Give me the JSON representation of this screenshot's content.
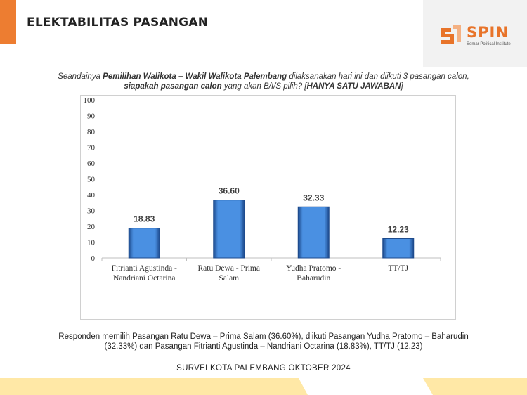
{
  "slide": {
    "title": "ELEKTABILITAS PASANGAN",
    "question": {
      "p1": "Seandainya ",
      "b1": "Pemilihan Walikota – Wakil Walikota Palembang",
      "p2": " dilaksanakan hari ini dan diikuti 3 pasangan calon, ",
      "b2": "siapakah pasangan calon",
      "p3": " yang akan B/I/S pilih? [",
      "b3": "HANYA SATU JAWABAN",
      "p4": "]"
    },
    "summary": "Responden memilih Pasangan Ratu Dewa – Prima Salam (36.60%), diikuti Pasangan Yudha Pratomo – Baharudin (32.33%) dan Pasangan Fitrianti Agustinda – Nandriani Octarina (18.83%), TT/TJ (12.23)",
    "survey": "SURVEI KOTA PALEMBANG OKTOBER 2024"
  },
  "logo": {
    "name": "SPIN",
    "subtitle": "Semar Political Institute",
    "color": "#e8742a"
  },
  "colors": {
    "accent": "#ed7d31",
    "footer": "#ffe8a6",
    "bar": "#4a90e2",
    "bar_dark": "#1d4a8c"
  },
  "chart_data": {
    "type": "bar",
    "categories": [
      [
        "Fitrianti Agustinda -",
        "Nandriani Octarina"
      ],
      [
        "Ratu Dewa - Prima",
        "Salam"
      ],
      [
        "Yudha Pratomo -",
        "Baharudin"
      ],
      [
        "TT/TJ"
      ]
    ],
    "values": [
      18.83,
      36.6,
      32.33,
      12.23
    ],
    "value_labels": [
      "18.83",
      "36.60",
      "32.33",
      "12.23"
    ],
    "yticks": [
      "0",
      "10",
      "20",
      "30",
      "40",
      "50",
      "60",
      "70",
      "80",
      "90",
      "100"
    ],
    "ylim": [
      0,
      100
    ],
    "grid": false,
    "legend": "none",
    "title": "",
    "xlabel": "",
    "ylabel": ""
  }
}
